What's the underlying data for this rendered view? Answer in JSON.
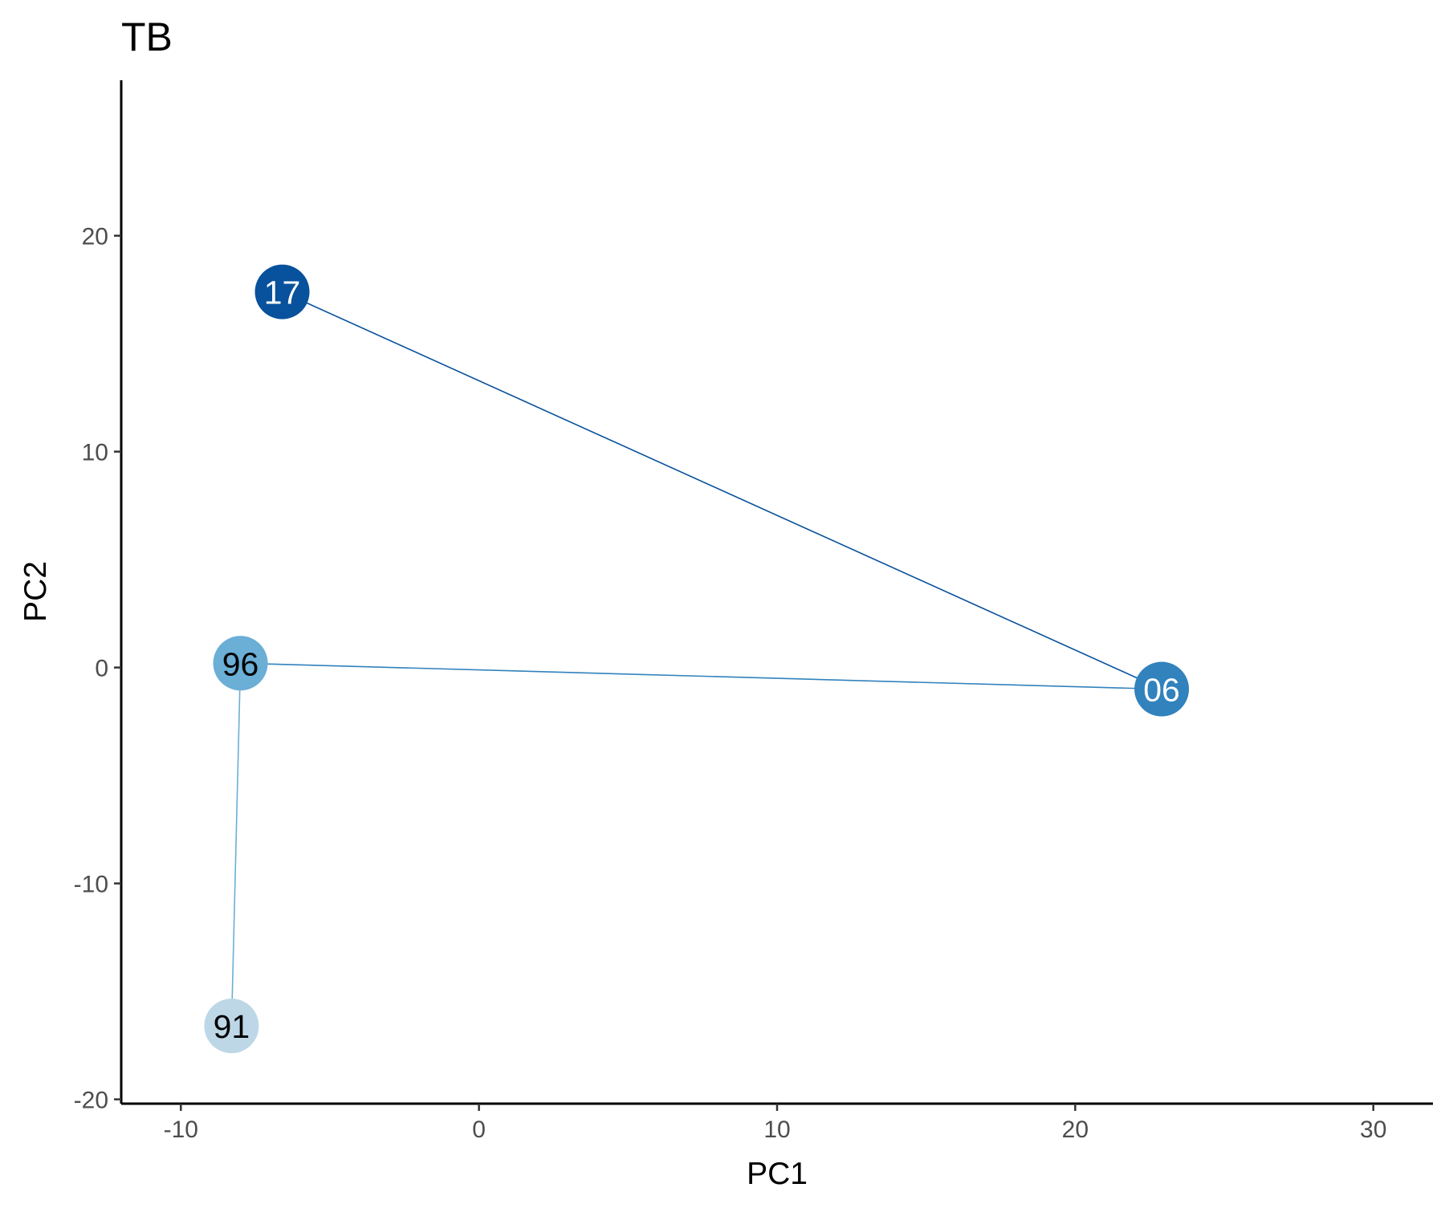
{
  "chart_data": {
    "type": "scatter",
    "title": "TB",
    "xlabel": "PC1",
    "ylabel": "PC2",
    "xlim": [
      -12,
      32
    ],
    "ylim": [
      -20.2,
      27.2
    ],
    "xticks": [
      -10,
      0,
      10,
      20,
      30
    ],
    "yticks": [
      -20,
      -10,
      0,
      10,
      20
    ],
    "xtick_labels": [
      "-10",
      "0",
      "10",
      "20",
      "30"
    ],
    "ytick_labels": [
      "-20",
      "-10",
      "0",
      "10",
      "20"
    ],
    "grid": false,
    "legend": "none",
    "points": [
      {
        "label": "91",
        "x": -8.3,
        "y": -16.6,
        "color": "#bdd7e7",
        "text_color": "#000000"
      },
      {
        "label": "96",
        "x": -8.0,
        "y": 0.2,
        "color": "#6baed6",
        "text_color": "#000000"
      },
      {
        "label": "06",
        "x": 22.9,
        "y": -1.0,
        "color": "#3182bd",
        "text_color": "#ffffff"
      },
      {
        "label": "17",
        "x": -6.6,
        "y": 17.4,
        "color": "#08519c",
        "text_color": "#ffffff"
      }
    ],
    "path_order": [
      "91",
      "96",
      "06",
      "17"
    ]
  }
}
